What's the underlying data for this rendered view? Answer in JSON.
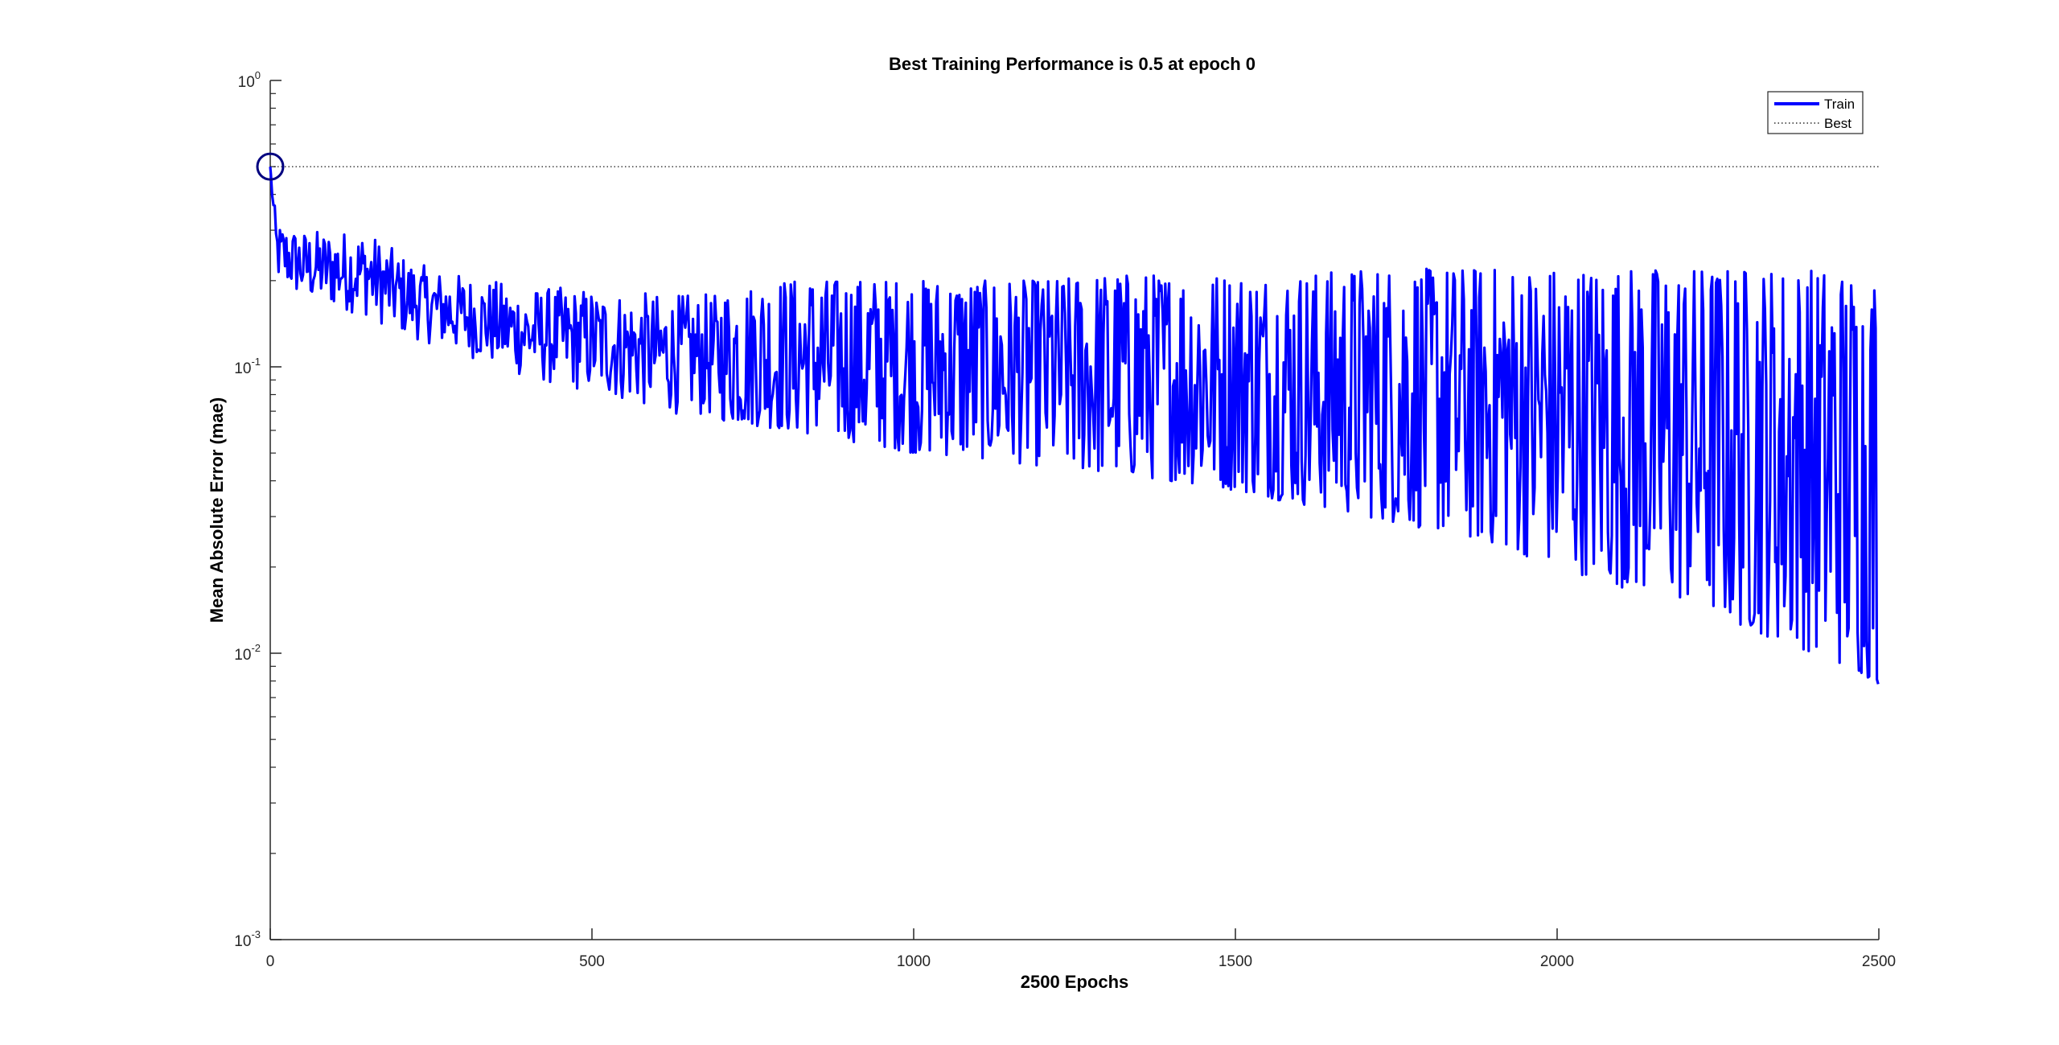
{
  "chart_data": {
    "type": "line",
    "title": "Best Training Performance is 0.5 at epoch 0",
    "xlabel": "2500 Epochs",
    "ylabel": "Mean Absolute Error  (mae)",
    "xlim": [
      0,
      2500
    ],
    "ylim": [
      0.001,
      1
    ],
    "yscale": "log",
    "grid": false,
    "legend_position": "top-right",
    "x_ticks": [
      0,
      500,
      1000,
      1500,
      2000,
      2500
    ],
    "x_tick_labels": [
      "0",
      "500",
      "1000",
      "1500",
      "2000",
      "2500"
    ],
    "y_ticks": [
      0.001,
      0.01,
      0.1,
      1
    ],
    "y_tick_labels": [
      {
        "base": "10",
        "exp": "-3"
      },
      {
        "base": "10",
        "exp": "-2"
      },
      {
        "base": "10",
        "exp": "-1"
      },
      {
        "base": "10",
        "exp": "0"
      }
    ],
    "series": [
      {
        "name": "Train",
        "color": "#0000ff",
        "style": "solid",
        "envelope": {
          "x": [
            0,
            10,
            50,
            100,
            150,
            200,
            250,
            300,
            350,
            400,
            450,
            500,
            600,
            700,
            800,
            900,
            1000,
            1100,
            1200,
            1300,
            1400,
            1500,
            1600,
            1700,
            1800,
            1900,
            2000,
            2100,
            2200,
            2300,
            2400,
            2500
          ],
          "upper": [
            0.5,
            0.32,
            0.3,
            0.3,
            0.3,
            0.25,
            0.22,
            0.21,
            0.2,
            0.19,
            0.19,
            0.19,
            0.18,
            0.18,
            0.2,
            0.2,
            0.2,
            0.2,
            0.2,
            0.21,
            0.21,
            0.21,
            0.21,
            0.22,
            0.22,
            0.22,
            0.22,
            0.22,
            0.22,
            0.22,
            0.22,
            0.21
          ],
          "lower": [
            0.5,
            0.2,
            0.17,
            0.16,
            0.15,
            0.13,
            0.12,
            0.11,
            0.1,
            0.09,
            0.085,
            0.08,
            0.07,
            0.065,
            0.06,
            0.055,
            0.05,
            0.048,
            0.045,
            0.042,
            0.04,
            0.037,
            0.033,
            0.03,
            0.027,
            0.024,
            0.02,
            0.017,
            0.015,
            0.012,
            0.01,
            0.0078
          ]
        },
        "last_value": 0.0078
      },
      {
        "name": "Best",
        "color": "#000000",
        "style": "dotted",
        "x": [
          0,
          2500
        ],
        "values": [
          0.5,
          0.5
        ]
      }
    ],
    "best_point": {
      "epoch": 0,
      "value": 0.5,
      "marker": "circle",
      "color": "#000080"
    }
  }
}
